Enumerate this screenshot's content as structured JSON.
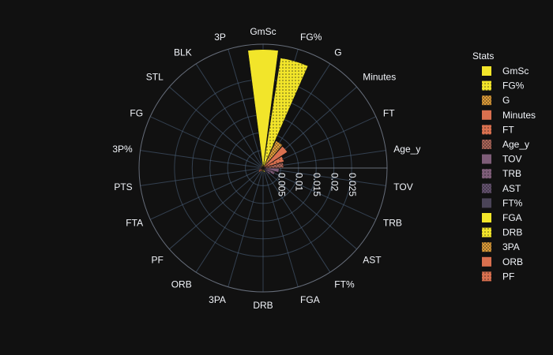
{
  "chart_data": {
    "type": "barpolar",
    "title": "",
    "legend": {
      "title": "Stats",
      "placement": "right"
    },
    "radial_axis": {
      "range": [
        0,
        0.035
      ],
      "tick_labels": [
        "0.005",
        "0.01",
        "0.015",
        "0.02",
        "0.025"
      ],
      "tick_values": [
        0.005,
        0.01,
        0.015,
        0.02,
        0.025
      ]
    },
    "categories": [
      "GmSc",
      "FG%",
      "G",
      "Minutes",
      "FT",
      "Age_y",
      "TOV",
      "TRB",
      "AST",
      "FT%",
      "FGA",
      "DRB",
      "3PA",
      "ORB",
      "PF",
      "FTA",
      "PTS",
      "3P%",
      "FG",
      "STL",
      "BLK",
      "3P"
    ],
    "series": [
      {
        "name": "GmSc",
        "category": "GmSc",
        "value": 0.0335,
        "color": "#f2e52a",
        "pattern": "solid"
      },
      {
        "name": "FG%",
        "category": "FG%",
        "value": 0.0315,
        "color": "#f2e52a",
        "pattern": "dots"
      },
      {
        "name": "G",
        "category": "G",
        "value": 0.0085,
        "color": "#e8a33a",
        "pattern": "cross"
      },
      {
        "name": "Minutes",
        "category": "Minutes",
        "value": 0.0082,
        "color": "#d9704f",
        "pattern": "solid"
      },
      {
        "name": "FT",
        "category": "FT",
        "value": 0.0062,
        "color": "#d9704f",
        "pattern": "dots"
      },
      {
        "name": "Age_y",
        "category": "Age_y",
        "value": 0.0058,
        "color": "#b2695c",
        "pattern": "cross"
      },
      {
        "name": "TOV",
        "category": "TOV",
        "value": 0.0045,
        "color": "#7e5d78",
        "pattern": "solid"
      },
      {
        "name": "TRB",
        "category": "TRB",
        "value": 0.0035,
        "color": "#7e5d78",
        "pattern": "dots"
      },
      {
        "name": "AST",
        "category": "AST",
        "value": 0.0025,
        "color": "#6a5675",
        "pattern": "cross"
      },
      {
        "name": "FT%",
        "category": "FT%",
        "value": 0.0015,
        "color": "#4b4458",
        "pattern": "solid"
      },
      {
        "name": "FGA",
        "category": "FGA",
        "value": 0.0012,
        "color": "#f2e52a",
        "pattern": "solid"
      },
      {
        "name": "DRB",
        "category": "DRB",
        "value": 0.001,
        "color": "#f2e52a",
        "pattern": "dots"
      },
      {
        "name": "3PA",
        "category": "3PA",
        "value": 0.001,
        "color": "#e8a33a",
        "pattern": "cross"
      },
      {
        "name": "ORB",
        "category": "ORB",
        "value": 0.001,
        "color": "#d9704f",
        "pattern": "solid"
      },
      {
        "name": "PF",
        "category": "PF",
        "value": 0.0015,
        "color": "#d9704f",
        "pattern": "dots"
      }
    ],
    "extra_bars": [
      {
        "category": "FTA",
        "value": 0.0012,
        "color": "#b2695c"
      },
      {
        "category": "PTS",
        "value": 0.001,
        "color": "#7e5d78"
      },
      {
        "category": "3P%",
        "value": 0.001,
        "color": "#6a5675"
      },
      {
        "category": "FG",
        "value": 0.0008,
        "color": "#e8a33a"
      },
      {
        "category": "STL",
        "value": 0.0008,
        "color": "#d9704f"
      },
      {
        "category": "BLK",
        "value": 0.0008,
        "color": "#b2695c"
      },
      {
        "category": "3P",
        "value": 0.001,
        "color": "#f2e52a"
      }
    ],
    "grid": true,
    "colors": {
      "background": "#111111",
      "grid": "#506784",
      "text": "#f2f5fa"
    }
  }
}
